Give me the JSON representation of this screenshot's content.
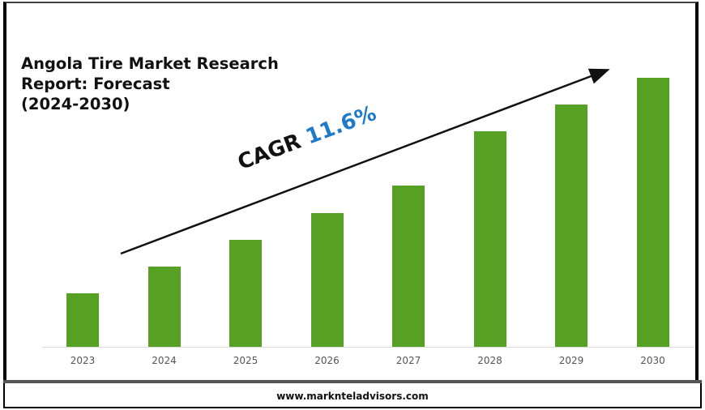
{
  "title_lines": [
    "Angola Tire Market Research",
    "Report: Forecast",
    "(2024-2030)"
  ],
  "cagr": {
    "label": "CAGR",
    "value": "11.6%",
    "value_color": "#1f7ac9"
  },
  "footer": {
    "url": "www.marknteladvisors.com"
  },
  "colors": {
    "bar": "#56a124",
    "axis": "#d9d9d9"
  },
  "chart_data": {
    "type": "bar",
    "title": "Angola Tire Market Research Report: Forecast (2024-2030)",
    "categories": [
      "2023",
      "2024",
      "2025",
      "2026",
      "2027",
      "2028",
      "2029",
      "2030"
    ],
    "values": [
      66,
      99,
      132,
      165,
      199,
      266,
      299,
      332
    ],
    "value_units": "relative bar height (px, no axis shown)",
    "xlabel": "",
    "ylabel": "",
    "annotations": [
      "CAGR 11.6%"
    ],
    "grid": false,
    "legend": null
  }
}
